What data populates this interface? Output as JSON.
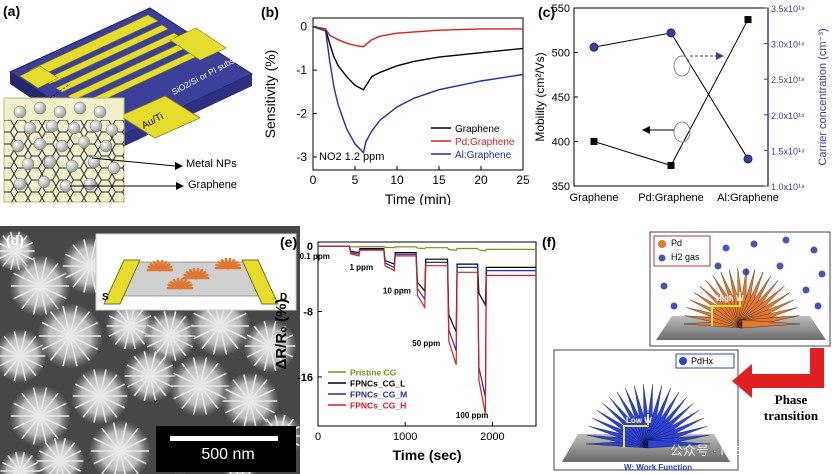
{
  "panel_labels": {
    "a": "(a)",
    "b": "(b)",
    "c": "(c)",
    "d": "(d)",
    "e": "(e)",
    "f": "(f)"
  },
  "panel_a": {
    "substrate_label": "SiO2/Si or PI substrate",
    "electrode_label": "Au/Ti",
    "nps_label": "Metal NPs",
    "graphene_label": "Graphene",
    "colors": {
      "substrate": "#3a3f9a",
      "electrode": "#e6dc2e",
      "nanoparticle": "#d9d9d9"
    }
  },
  "panel_d": {
    "scalebar_label": "500 nm",
    "electrode_left": "S",
    "electrode_right": "D"
  },
  "panel_f": {
    "pd_legend": "Pd",
    "h2_legend": "H2 gas",
    "pdhx_legend": "PdHx",
    "high_w": "High W",
    "low_w": "Low W",
    "phase_transition": "Phase transition",
    "footnote": "W: Work Function",
    "watermark": "公众号 · MEMS",
    "colors": {
      "pd_flower": "#e07830",
      "pdhx_flower": "#2c43d8",
      "h2_dot": "#4a55b8",
      "arrow": "#e02020"
    }
  },
  "chart_data": [
    {
      "panel": "b",
      "type": "line",
      "xlabel": "Time (min)",
      "ylabel": "Sensitivity (%)",
      "xlim": [
        0,
        25
      ],
      "ylim": [
        -3.3,
        0.2
      ],
      "xticks": [
        0,
        5,
        10,
        15,
        20,
        25
      ],
      "yticks": [
        0,
        -1,
        -2,
        -3
      ],
      "annotation": "NO2 1.2 ppm",
      "legend_position": "right",
      "series": [
        {
          "name": "Graphene",
          "color": "#000000",
          "x": [
            0,
            1.5,
            2,
            2.5,
            3,
            4,
            5,
            6,
            6.5,
            7,
            8,
            10,
            12,
            15,
            20,
            25
          ],
          "y": [
            0,
            -0.05,
            -0.4,
            -0.7,
            -0.9,
            -1.15,
            -1.35,
            -1.45,
            -1.3,
            -1.15,
            -1.05,
            -0.9,
            -0.8,
            -0.7,
            -0.6,
            -0.5
          ]
        },
        {
          "name": "Pd:Graphene",
          "color": "#d62020",
          "x": [
            0,
            1.5,
            2,
            3,
            4,
            5,
            6,
            7,
            8,
            10,
            15,
            20,
            25
          ],
          "y": [
            0,
            -0.05,
            -0.2,
            -0.3,
            -0.38,
            -0.43,
            -0.46,
            -0.3,
            -0.22,
            -0.15,
            -0.08,
            -0.05,
            -0.05
          ]
        },
        {
          "name": "Al:Graphene",
          "color": "#1f2fa8",
          "x": [
            0,
            1.5,
            2,
            2.5,
            3,
            4,
            5,
            6,
            6.3,
            7,
            8,
            10,
            12,
            15,
            20,
            25
          ],
          "y": [
            0,
            -0.1,
            -0.8,
            -1.4,
            -1.8,
            -2.35,
            -2.7,
            -2.9,
            -2.65,
            -2.4,
            -2.15,
            -1.85,
            -1.65,
            -1.45,
            -1.25,
            -1.1
          ]
        }
      ]
    },
    {
      "panel": "c",
      "type": "line",
      "categories": [
        "Graphene",
        "Pd:Graphene",
        "Al:Graphene"
      ],
      "ylabel": "Mobility (cm²/Vs)",
      "y2label": "Carrier concentration (cm⁻³)",
      "ylim": [
        350,
        550
      ],
      "yticks": [
        350,
        400,
        450,
        500,
        550
      ],
      "y2lim": [
        1e+19,
        3.5e+19
      ],
      "y2ticks": [
        "1.0x10¹⁹",
        "1.5x10¹⁹",
        "2.0x10¹⁹",
        "2.5x10¹⁹",
        "3.0x10¹⁹",
        "3.5x10¹⁹"
      ],
      "y2tick_values": [
        1e+19,
        1.5e+19,
        2e+19,
        2.5e+19,
        3e+19,
        3.5e+19
      ],
      "series": [
        {
          "axis": "left",
          "marker": "square",
          "color": "#000000",
          "values": [
            400,
            373,
            537
          ]
        },
        {
          "axis": "right",
          "marker": "circle",
          "color": "#3a3f9a",
          "values": [
            2.95e+19,
            3.15e+19,
            1.38e+19
          ]
        }
      ]
    },
    {
      "panel": "e",
      "type": "line",
      "xlabel": "Time (sec)",
      "ylabel": "ΔR/R₀ (%)",
      "xlim": [
        0,
        2500
      ],
      "ylim": [
        -22,
        0.5
      ],
      "xticks": [
        0,
        1000,
        2000
      ],
      "yticks": [
        0,
        -8,
        -16
      ],
      "legend_position": "bottom-left",
      "concentrations": [
        {
          "label": "0.1 ppm",
          "t": 420
        },
        {
          "label": "1 ppm",
          "t": 820
        },
        {
          "label": "10 ppm",
          "t": 1180
        },
        {
          "label": "50 ppm",
          "t": 1540
        },
        {
          "label": "100 ppm",
          "t": 1880
        }
      ],
      "series": [
        {
          "name": "Pristine CG",
          "color": "#8a8a1a",
          "min_values": [
            -0.1,
            -0.2,
            -0.3,
            -0.5,
            -0.6
          ],
          "baseline": [
            -0.05,
            -0.1,
            -0.2,
            -0.3,
            -0.4
          ]
        },
        {
          "name": "FPNCs_CG_L",
          "color": "#000000",
          "min_values": [
            -0.8,
            -2.2,
            -5.5,
            -10.5,
            -7.2
          ],
          "baseline": [
            -0.3,
            -0.8,
            -1.6,
            -2.2,
            -2.6
          ]
        },
        {
          "name": "FPNCs_CG_M",
          "color": "#1f2fa8",
          "min_values": [
            -1.0,
            -2.6,
            -6.5,
            -12.8,
            -18.5
          ],
          "baseline": [
            -0.4,
            -1.0,
            -2.0,
            -2.6,
            -3.0
          ]
        },
        {
          "name": "FPNCs_CG_H",
          "color": "#d62020",
          "min_values": [
            -1.2,
            -3.0,
            -7.5,
            -14.5,
            -20.5
          ],
          "baseline": [
            -0.5,
            -1.2,
            -2.4,
            -3.2,
            -3.6
          ]
        }
      ]
    }
  ]
}
